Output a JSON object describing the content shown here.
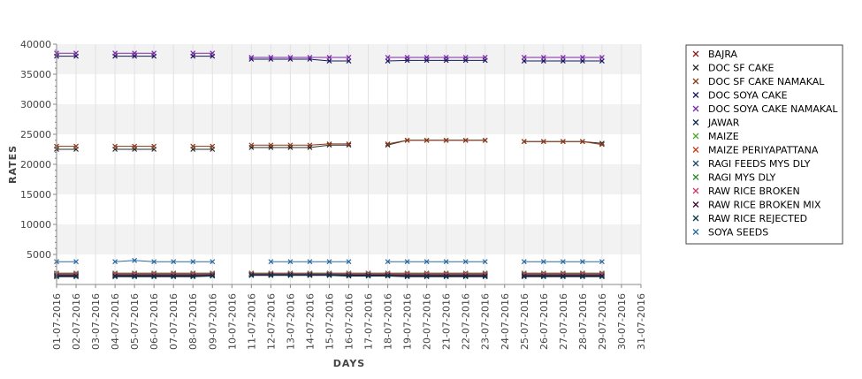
{
  "chart_data": {
    "type": "line",
    "title": "",
    "xlabel": "DAYS",
    "ylabel": "RATES",
    "ylim": [
      0,
      40000
    ],
    "yticks": [
      5000,
      10000,
      15000,
      20000,
      25000,
      30000,
      35000,
      40000
    ],
    "grid": "alternating horizontal bands",
    "legend_position": "right",
    "x": [
      "01-07-2016",
      "02-07-2016",
      "03-07-2016",
      "04-07-2016",
      "05-07-2016",
      "06-07-2016",
      "07-07-2016",
      "08-07-2016",
      "09-07-2016",
      "10-07-2016",
      "11-07-2016",
      "12-07-2016",
      "13-07-2016",
      "14-07-2016",
      "15-07-2016",
      "16-07-2016",
      "17-07-2016",
      "18-07-2016",
      "19-07-2016",
      "20-07-2016",
      "21-07-2016",
      "22-07-2016",
      "23-07-2016",
      "24-07-2016",
      "25-07-2016",
      "26-07-2016",
      "27-07-2016",
      "28-07-2016",
      "29-07-2016",
      "30-07-2016",
      "31-07-2016"
    ],
    "series": [
      {
        "name": "BAJRA",
        "color": "#8b1a1a",
        "values": [
          1700,
          1700,
          null,
          1700,
          1700,
          1700,
          1700,
          1700,
          1800,
          null,
          1800,
          1800,
          1800,
          1800,
          1800,
          1700,
          1700,
          1700,
          1700,
          1700,
          1700,
          1700,
          1700,
          null,
          1700,
          1700,
          1700,
          1700,
          1700,
          null,
          null
        ]
      },
      {
        "name": "DOC SF CAKE",
        "color": "#2b2b2b",
        "values": [
          22500,
          22500,
          null,
          22500,
          22500,
          22500,
          null,
          22500,
          22500,
          null,
          22800,
          22800,
          22800,
          22800,
          23200,
          23200,
          null,
          23200,
          24000,
          24000,
          24000,
          24000,
          24000,
          null,
          23800,
          23800,
          23800,
          23800,
          23500,
          null,
          null
        ]
      },
      {
        "name": "DOC SF CAKE NAMAKAL",
        "color": "#8b3a1a",
        "values": [
          23000,
          23000,
          null,
          23000,
          23000,
          23000,
          null,
          23000,
          23000,
          null,
          23200,
          23200,
          23200,
          23200,
          23400,
          23400,
          null,
          23400,
          24000,
          24000,
          24000,
          24000,
          24000,
          null,
          23800,
          23800,
          23800,
          23800,
          23300,
          null,
          null
        ]
      },
      {
        "name": "DOC SOYA CAKE",
        "color": "#1a1a5a",
        "values": [
          38000,
          38000,
          null,
          38000,
          38000,
          38000,
          null,
          38000,
          38000,
          null,
          37500,
          37500,
          37500,
          37500,
          37200,
          37200,
          null,
          37200,
          37300,
          37300,
          37300,
          37300,
          37300,
          null,
          37200,
          37200,
          37200,
          37200,
          37200,
          null,
          null
        ]
      },
      {
        "name": "DOC SOYA CAKE NAMAKAL",
        "color": "#7a2aa8",
        "values": [
          38500,
          38500,
          null,
          38500,
          38500,
          38500,
          null,
          38500,
          38500,
          null,
          37800,
          37800,
          37800,
          37800,
          37800,
          37800,
          null,
          37800,
          37800,
          37800,
          37800,
          37800,
          37800,
          null,
          37800,
          37800,
          37800,
          37800,
          37800,
          null,
          null
        ]
      },
      {
        "name": "JAWAR",
        "color": "#0a2a4a",
        "values": [
          1600,
          1600,
          null,
          1600,
          1600,
          1600,
          1600,
          1600,
          1700,
          null,
          1700,
          1700,
          1700,
          1700,
          1700,
          1600,
          1600,
          1600,
          1600,
          1600,
          1600,
          1600,
          1600,
          null,
          1600,
          1600,
          1600,
          1600,
          1600,
          null,
          null
        ]
      },
      {
        "name": "MAIZE",
        "color": "#4aa82a",
        "values": [
          1800,
          1800,
          null,
          1800,
          1800,
          1800,
          1800,
          1800,
          1800,
          null,
          1800,
          1800,
          1800,
          1800,
          1800,
          1800,
          1800,
          1800,
          1800,
          1800,
          1800,
          1800,
          1800,
          null,
          1800,
          1800,
          1800,
          1800,
          1800,
          null,
          null
        ]
      },
      {
        "name": "MAIZE PERIYAPATTANA",
        "color": "#c83a1a",
        "values": [
          1700,
          1700,
          null,
          1700,
          1700,
          1700,
          1700,
          1700,
          1700,
          null,
          1700,
          1700,
          1700,
          1700,
          1700,
          1700,
          1700,
          1700,
          1700,
          1700,
          1700,
          1700,
          1700,
          null,
          1700,
          1700,
          1700,
          1700,
          1700,
          null,
          null
        ]
      },
      {
        "name": "RAGI FEEDS MYS DLY",
        "color": "#1a4a6a",
        "values": [
          1500,
          1500,
          null,
          1500,
          1500,
          1500,
          1500,
          1500,
          1600,
          null,
          1700,
          1700,
          1700,
          1700,
          1700,
          1600,
          1600,
          1600,
          1500,
          1500,
          1500,
          1500,
          1500,
          null,
          1500,
          1500,
          1500,
          1500,
          1500,
          null,
          null
        ]
      },
      {
        "name": "RAGI MYS DLY",
        "color": "#2a8a2a",
        "values": [
          1900,
          1900,
          null,
          1900,
          1900,
          1900,
          1900,
          1900,
          1900,
          null,
          1900,
          1900,
          1900,
          1900,
          1900,
          1900,
          1900,
          1900,
          1900,
          1900,
          1900,
          1900,
          1900,
          null,
          1900,
          1900,
          1900,
          1900,
          1900,
          null,
          null
        ]
      },
      {
        "name": "RAW RICE BROKEN",
        "color": "#c83a6a",
        "values": [
          1800,
          1800,
          null,
          1800,
          1800,
          1800,
          1800,
          1800,
          1800,
          null,
          1800,
          1800,
          1800,
          1800,
          1800,
          1800,
          1800,
          1800,
          1800,
          1800,
          1800,
          1800,
          1800,
          null,
          1800,
          1800,
          1800,
          1800,
          1800,
          null,
          null
        ]
      },
      {
        "name": "RAW RICE BROKEN MIX",
        "color": "#3a0a2a",
        "values": [
          1400,
          1400,
          null,
          1400,
          1400,
          1400,
          1400,
          1400,
          1500,
          null,
          1600,
          1600,
          1600,
          1600,
          1600,
          1500,
          1500,
          1500,
          1400,
          1400,
          1400,
          1400,
          1400,
          null,
          1400,
          1400,
          1400,
          1400,
          1400,
          null,
          null
        ]
      },
      {
        "name": "RAW RICE REJECTED",
        "color": "#0a3a4a",
        "values": [
          1300,
          1300,
          null,
          1300,
          1300,
          1300,
          1300,
          1300,
          1400,
          null,
          1500,
          1500,
          1500,
          1500,
          1500,
          1400,
          1400,
          1400,
          1300,
          1300,
          1300,
          1300,
          1300,
          null,
          1300,
          1300,
          1300,
          1300,
          1300,
          null,
          null
        ]
      },
      {
        "name": "SOYA SEEDS",
        "color": "#2a6aa0",
        "values": [
          3800,
          3800,
          null,
          3800,
          4000,
          3800,
          3800,
          3800,
          3800,
          null,
          null,
          3800,
          3800,
          3800,
          3800,
          3800,
          null,
          3800,
          3800,
          3800,
          3800,
          3800,
          3800,
          null,
          3800,
          3800,
          3800,
          3800,
          3800,
          null,
          null
        ]
      }
    ]
  }
}
